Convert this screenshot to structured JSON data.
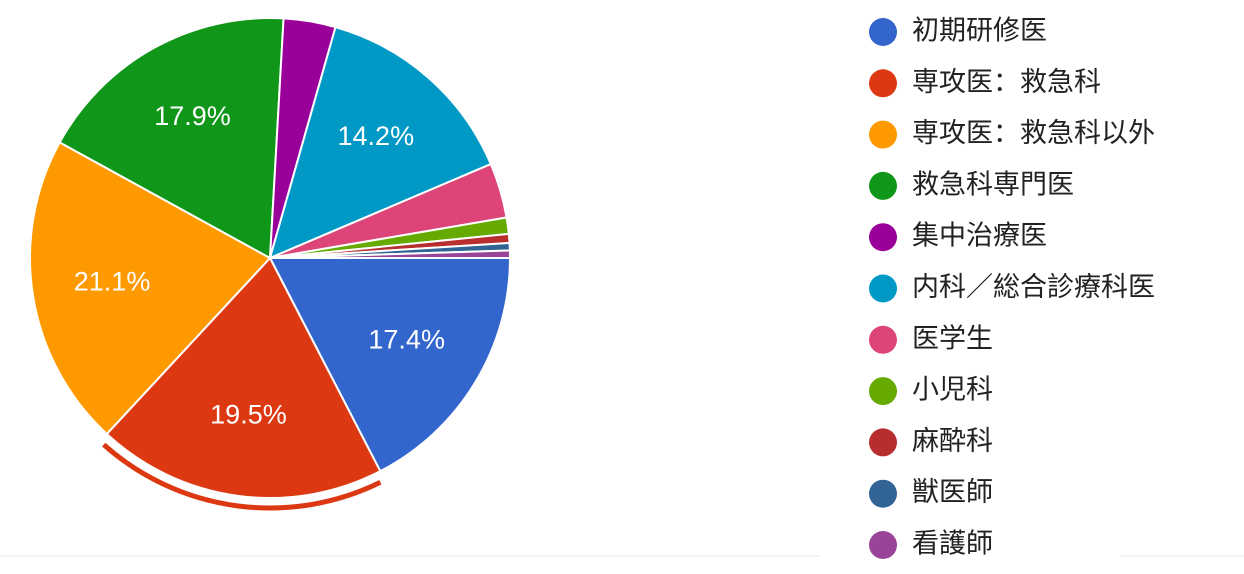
{
  "chart_data": {
    "type": "pie",
    "categories": [
      "初期研修医",
      "専攻医：救急科",
      "専攻医：救急科以外",
      "救急科専門医",
      "集中治療医",
      "内科／総合診療科医",
      "医学生",
      "小児科",
      "麻酔科",
      "獣医師",
      "看護師"
    ],
    "values": [
      17.4,
      19.5,
      21.1,
      17.9,
      3.5,
      14.2,
      3.7,
      1.1,
      0.6,
      0.5,
      0.5
    ],
    "value_labels": [
      "17.4%",
      "19.5%",
      "21.1%",
      "17.9%",
      null,
      "14.2%",
      null,
      null,
      null,
      null,
      null
    ],
    "colors": [
      "#3366cc",
      "#dc3912",
      "#ff9900",
      "#109618",
      "#990099",
      "#0099c6",
      "#dd4477",
      "#66aa00",
      "#b82e2e",
      "#316395",
      "#994499"
    ],
    "legend": "right"
  }
}
